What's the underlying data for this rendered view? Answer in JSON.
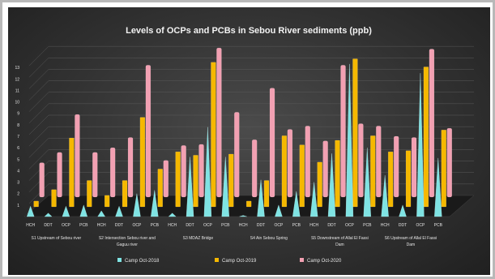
{
  "chart_data": {
    "type": "bar",
    "title": "Levels of OCPs and PCBs in Sebou River sediments (ppb)",
    "ylim": [
      0,
      14
    ],
    "yticks": [
      1,
      2,
      3,
      4,
      5,
      6,
      7,
      8,
      9,
      10,
      11,
      12,
      13
    ],
    "grid": true,
    "legend_position": "bottom",
    "categories": [
      {
        "name": "S1 Upstream of Sebou river",
        "subs": [
          "HCH",
          "DDT",
          "OCP",
          "PCB"
        ]
      },
      {
        "name": "S2 Intersection Sebou river and Gaguu river",
        "subs": [
          "HCH",
          "DDT",
          "OCP",
          "PCB"
        ]
      },
      {
        "name": "S3 MDAZ Bridge",
        "subs": [
          "HCH",
          "DDT",
          "OCP",
          "PCB"
        ]
      },
      {
        "name": "S4 Ain Sebou Spring",
        "subs": [
          "HCH",
          "DDT",
          "OCP",
          "PCB"
        ]
      },
      {
        "name": "S5 Downstream of Allal El Fassi Dam",
        "subs": [
          "HCH",
          "DDT",
          "OCP",
          "PCB"
        ]
      },
      {
        "name": "S6 Upstream of Allal El Fassi Dam",
        "subs": [
          "HCH",
          "DDT",
          "OCP",
          "PCB"
        ]
      }
    ],
    "series": [
      {
        "name": "Camp Oct-2018",
        "color": "#7fe3e3",
        "values": [
          [
            0.9,
            0.3,
            0.9,
            1.0
          ],
          [
            0.5,
            0.9,
            2.0,
            2.3
          ],
          [
            0.3,
            5.2,
            7.8,
            5.2
          ],
          [
            0.1,
            3.2,
            1.0,
            2.2
          ],
          [
            3.0,
            5.5,
            13.3,
            6.0
          ],
          [
            3.6,
            1.0,
            12.5,
            5.1
          ]
        ]
      },
      {
        "name": "Camp Oct-2019",
        "color": "#f5b800",
        "values": [
          [
            0.5,
            1.5,
            6.0,
            2.3
          ],
          [
            1.0,
            2.3,
            7.8,
            3.3
          ],
          [
            4.8,
            4.5,
            12.6,
            4.6
          ],
          [
            0.5,
            2.3,
            6.2,
            5.4
          ],
          [
            3.9,
            5.8,
            12.9,
            6.2
          ],
          [
            4.8,
            4.9,
            12.2,
            6.7
          ]
        ]
      },
      {
        "name": "Camp Oct-2020",
        "color": "#f2a0b2",
        "values": [
          [
            3.0,
            3.9,
            7.2,
            3.9
          ],
          [
            4.3,
            5.2,
            11.5,
            3.2
          ],
          [
            4.5,
            4.6,
            13.0,
            7.4
          ],
          [
            5.0,
            9.5,
            5.9,
            6.2
          ],
          [
            4.9,
            11.5,
            6.4,
            6.2
          ],
          [
            5.3,
            5.2,
            12.9,
            6.0
          ]
        ]
      }
    ]
  }
}
